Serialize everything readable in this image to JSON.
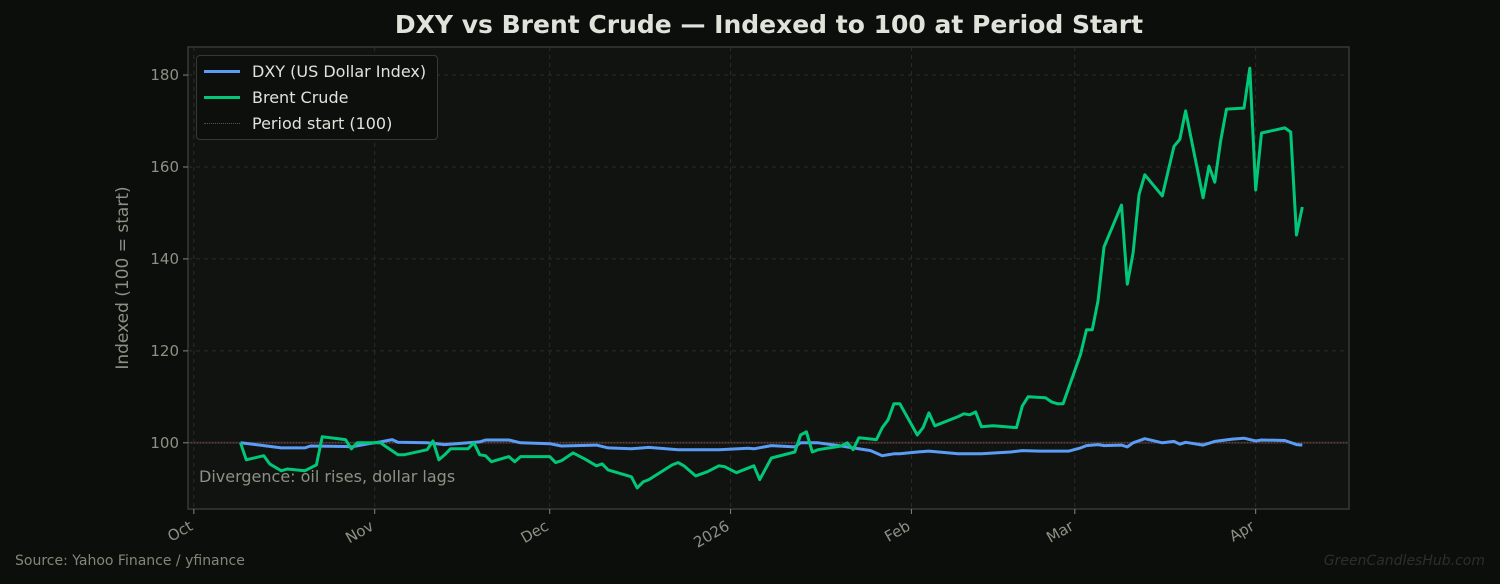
{
  "chart_data": {
    "type": "line",
    "title": "DXY vs Brent Crude — Indexed to 100 at Period Start",
    "xlabel": "",
    "ylabel": "Indexed (100 = start)",
    "xlim": [
      "2025-09-30",
      "2026-04-17"
    ],
    "ylim": [
      85.6,
      186.1
    ],
    "yticks": [
      100,
      120,
      140,
      160,
      180
    ],
    "xticks": [
      {
        "date": "2025-10-01",
        "label": "Oct"
      },
      {
        "date": "2025-11-01",
        "label": "Nov"
      },
      {
        "date": "2025-12-01",
        "label": "Dec"
      },
      {
        "date": "2026-01-01",
        "label": "2026"
      },
      {
        "date": "2026-02-01",
        "label": "Feb"
      },
      {
        "date": "2026-03-01",
        "label": "Mar"
      },
      {
        "date": "2026-04-01",
        "label": "Apr"
      }
    ],
    "grid": true,
    "legend_position": "top-left",
    "annotation": "Divergence: oil rises, dollar lags",
    "reference_line": {
      "name": "Period start (100)",
      "value": 100,
      "color": "#555555"
    },
    "series": [
      {
        "name": "DXY (US Dollar Index)",
        "color": "#5b9cf5",
        "points": [
          [
            "2025-10-09",
            100
          ],
          [
            "2025-10-13",
            99.4
          ],
          [
            "2025-10-16",
            98.9
          ],
          [
            "2025-10-20",
            98.9
          ],
          [
            "2025-10-21",
            99.3
          ],
          [
            "2025-10-27",
            99.2
          ],
          [
            "2025-10-28",
            99.1
          ],
          [
            "2025-10-31",
            99.8
          ],
          [
            "2025-11-02",
            100.2
          ],
          [
            "2025-11-04",
            100.7
          ],
          [
            "2025-11-05",
            100.1
          ],
          [
            "2025-11-10",
            100
          ],
          [
            "2025-11-13",
            99.6
          ],
          [
            "2025-11-19",
            100.2
          ],
          [
            "2025-11-20",
            100.6
          ],
          [
            "2025-11-24",
            100.6
          ],
          [
            "2025-11-26",
            100
          ],
          [
            "2025-12-01",
            99.8
          ],
          [
            "2025-12-03",
            99.3
          ],
          [
            "2025-12-09",
            99.5
          ],
          [
            "2025-12-11",
            98.9
          ],
          [
            "2025-12-15",
            98.7
          ],
          [
            "2025-12-18",
            99
          ],
          [
            "2025-12-23",
            98.5
          ],
          [
            "2025-12-30",
            98.5
          ],
          [
            "2026-01-04",
            98.8
          ],
          [
            "2026-01-05",
            98.7
          ],
          [
            "2026-01-08",
            99.4
          ],
          [
            "2026-01-12",
            99.1
          ],
          [
            "2026-01-13",
            100
          ],
          [
            "2026-01-16",
            100
          ],
          [
            "2026-01-20",
            99.3
          ],
          [
            "2026-01-22",
            98.9
          ],
          [
            "2026-01-25",
            98.3
          ],
          [
            "2026-01-27",
            97.2
          ],
          [
            "2026-01-29",
            97.6
          ],
          [
            "2026-01-30",
            97.6
          ],
          [
            "2026-02-02",
            98
          ],
          [
            "2026-02-04",
            98.2
          ],
          [
            "2026-02-09",
            97.6
          ],
          [
            "2026-02-13",
            97.6
          ],
          [
            "2026-02-18",
            98
          ],
          [
            "2026-02-20",
            98.3
          ],
          [
            "2026-02-23",
            98.2
          ],
          [
            "2026-02-28",
            98.2
          ],
          [
            "2026-03-02",
            98.9
          ],
          [
            "2026-03-03",
            99.4
          ],
          [
            "2026-03-05",
            99.6
          ],
          [
            "2026-03-06",
            99.4
          ],
          [
            "2026-03-09",
            99.5
          ],
          [
            "2026-03-10",
            99.1
          ],
          [
            "2026-03-11",
            100
          ],
          [
            "2026-03-13",
            100.9
          ],
          [
            "2026-03-16",
            100
          ],
          [
            "2026-03-18",
            100.3
          ],
          [
            "2026-03-19",
            99.7
          ],
          [
            "2026-03-20",
            100.1
          ],
          [
            "2026-03-23",
            99.5
          ],
          [
            "2026-03-25",
            100.3
          ],
          [
            "2026-03-28",
            100.8
          ],
          [
            "2026-03-30",
            101
          ],
          [
            "2026-04-01",
            100.4
          ],
          [
            "2026-04-02",
            100.6
          ],
          [
            "2026-04-06",
            100.5
          ],
          [
            "2026-04-08",
            99.6
          ],
          [
            "2026-04-09",
            99.5
          ]
        ]
      },
      {
        "name": "Brent Crude",
        "color": "#00c878",
        "points": [
          [
            "2025-10-09",
            100
          ],
          [
            "2025-10-10",
            96.3
          ],
          [
            "2025-10-13",
            97.2
          ],
          [
            "2025-10-14",
            95.4
          ],
          [
            "2025-10-16",
            93.9
          ],
          [
            "2025-10-17",
            94.3
          ],
          [
            "2025-10-20",
            93.9
          ],
          [
            "2025-10-22",
            95.2
          ],
          [
            "2025-10-23",
            101.3
          ],
          [
            "2025-10-27",
            100.7
          ],
          [
            "2025-10-28",
            98.7
          ],
          [
            "2025-10-29",
            100
          ],
          [
            "2025-11-02",
            100
          ],
          [
            "2025-11-03",
            99.1
          ],
          [
            "2025-11-05",
            97.4
          ],
          [
            "2025-11-06",
            97.4
          ],
          [
            "2025-11-10",
            98.5
          ],
          [
            "2025-11-11",
            100.4
          ],
          [
            "2025-11-12",
            96.3
          ],
          [
            "2025-11-13",
            97.4
          ],
          [
            "2025-11-14",
            98.7
          ],
          [
            "2025-11-17",
            98.7
          ],
          [
            "2025-11-18",
            100
          ],
          [
            "2025-11-19",
            97.4
          ],
          [
            "2025-11-20",
            97.2
          ],
          [
            "2025-11-21",
            95.9
          ],
          [
            "2025-11-24",
            97
          ],
          [
            "2025-11-25",
            95.9
          ],
          [
            "2025-11-26",
            97
          ],
          [
            "2025-12-01",
            97
          ],
          [
            "2025-12-02",
            95.7
          ],
          [
            "2025-12-03",
            96.1
          ],
          [
            "2025-12-05",
            97.8
          ],
          [
            "2025-12-07",
            96.5
          ],
          [
            "2025-12-09",
            95
          ],
          [
            "2025-12-10",
            95.4
          ],
          [
            "2025-12-11",
            94.1
          ],
          [
            "2025-12-15",
            92.6
          ],
          [
            "2025-12-16",
            90.2
          ],
          [
            "2025-12-17",
            91.5
          ],
          [
            "2025-12-18",
            92
          ],
          [
            "2025-12-22",
            95.2
          ],
          [
            "2025-12-23",
            95.7
          ],
          [
            "2025-12-24",
            95
          ],
          [
            "2025-12-26",
            92.8
          ],
          [
            "2025-12-28",
            93.7
          ],
          [
            "2025-12-30",
            95
          ],
          [
            "2025-12-31",
            94.8
          ],
          [
            "2026-01-02",
            93.5
          ],
          [
            "2026-01-05",
            95
          ],
          [
            "2026-01-06",
            92
          ],
          [
            "2026-01-08",
            96.7
          ],
          [
            "2026-01-12",
            98
          ],
          [
            "2026-01-13",
            101.7
          ],
          [
            "2026-01-14",
            102.4
          ],
          [
            "2026-01-15",
            98
          ],
          [
            "2026-01-16",
            98.5
          ],
          [
            "2026-01-20",
            99.3
          ],
          [
            "2026-01-21",
            100
          ],
          [
            "2026-01-22",
            98.5
          ],
          [
            "2026-01-23",
            101.1
          ],
          [
            "2026-01-26",
            100.7
          ],
          [
            "2026-01-27",
            103.3
          ],
          [
            "2026-01-28",
            105
          ],
          [
            "2026-01-29",
            108.5
          ],
          [
            "2026-01-30",
            108.5
          ],
          [
            "2026-02-02",
            101.7
          ],
          [
            "2026-02-03",
            103.3
          ],
          [
            "2026-02-04",
            106.5
          ],
          [
            "2026-02-05",
            103.7
          ],
          [
            "2026-02-09",
            105.7
          ],
          [
            "2026-02-10",
            106.3
          ],
          [
            "2026-02-11",
            106.1
          ],
          [
            "2026-02-12",
            106.7
          ],
          [
            "2026-02-13",
            103.5
          ],
          [
            "2026-02-15",
            103.7
          ],
          [
            "2026-02-19",
            103.3
          ],
          [
            "2026-02-20",
            108
          ],
          [
            "2026-02-21",
            110
          ],
          [
            "2026-02-24",
            109.8
          ],
          [
            "2026-02-25",
            108.9
          ],
          [
            "2026-02-26",
            108.5
          ],
          [
            "2026-02-27",
            108.5
          ],
          [
            "2026-03-02",
            119.3
          ],
          [
            "2026-03-03",
            124.6
          ],
          [
            "2026-03-04",
            124.6
          ],
          [
            "2026-03-05",
            131
          ],
          [
            "2026-03-06",
            142.6
          ],
          [
            "2026-03-09",
            151.7
          ],
          [
            "2026-03-10",
            134.5
          ],
          [
            "2026-03-11",
            141.3
          ],
          [
            "2026-03-12",
            154
          ],
          [
            "2026-03-13",
            158.3
          ],
          [
            "2026-03-16",
            153.7
          ],
          [
            "2026-03-18",
            164.5
          ],
          [
            "2026-03-19",
            166
          ],
          [
            "2026-03-20",
            172.2
          ],
          [
            "2026-03-23",
            153.3
          ],
          [
            "2026-03-24",
            160.2
          ],
          [
            "2026-03-25",
            156.7
          ],
          [
            "2026-03-26",
            165.6
          ],
          [
            "2026-03-27",
            172.6
          ],
          [
            "2026-03-30",
            172.8
          ],
          [
            "2026-03-31",
            181.5
          ],
          [
            "2026-04-01",
            155
          ],
          [
            "2026-04-02",
            167.4
          ],
          [
            "2026-04-06",
            168.5
          ],
          [
            "2026-04-07",
            167.6
          ],
          [
            "2026-04-08",
            145.2
          ],
          [
            "2026-04-09",
            151.3
          ]
        ]
      }
    ]
  },
  "footer": {
    "source": "Source: Yahoo Finance / yfinance",
    "watermark": "GreenCandlesHub.com"
  }
}
